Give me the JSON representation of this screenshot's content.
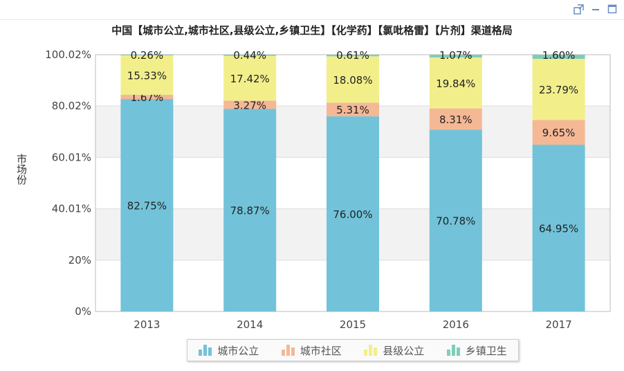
{
  "window": {
    "icons": [
      "export-icon",
      "minimize-icon",
      "maximize-icon"
    ]
  },
  "chart_data": {
    "type": "bar",
    "stacked": true,
    "title": "中国【城市公立,城市社区,县级公立,乡镇卫生】【化学药】【氯吡格雷】【片剂】渠道格局",
    "ylabel": "市场份",
    "categories": [
      "2013",
      "2014",
      "2015",
      "2016",
      "2017"
    ],
    "ylim": [
      0,
      100.02
    ],
    "yticks": [
      "0%",
      "20%",
      "40.01%",
      "60.01%",
      "80.02%",
      "100.02%"
    ],
    "ytick_values": [
      0,
      20,
      40.01,
      60.01,
      80.02,
      100.02
    ],
    "grid": true,
    "legend_position": "bottom",
    "series": [
      {
        "name": "城市公立",
        "color": "#72c3d9",
        "values": [
          82.75,
          78.87,
          76.0,
          70.78,
          64.95
        ],
        "labels": [
          "82.75%",
          "78.87%",
          "76.00%",
          "70.78%",
          "64.95%"
        ]
      },
      {
        "name": "城市社区",
        "color": "#f5b895",
        "values": [
          1.67,
          3.27,
          5.31,
          8.31,
          9.65
        ],
        "labels": [
          "1.67%",
          "3.27%",
          "5.31%",
          "8.31%",
          "9.65%"
        ]
      },
      {
        "name": "县级公立",
        "color": "#f2ef8b",
        "values": [
          15.33,
          17.42,
          18.08,
          19.84,
          23.79
        ],
        "labels": [
          "15.33%",
          "17.42%",
          "18.08%",
          "19.84%",
          "23.79%"
        ]
      },
      {
        "name": "乡镇卫生",
        "color": "#7fcdb9",
        "values": [
          0.26,
          0.44,
          0.61,
          1.07,
          1.6
        ],
        "labels": [
          "0.26%",
          "0.44%",
          "0.61%",
          "1.07%",
          "1.60%"
        ]
      }
    ]
  }
}
